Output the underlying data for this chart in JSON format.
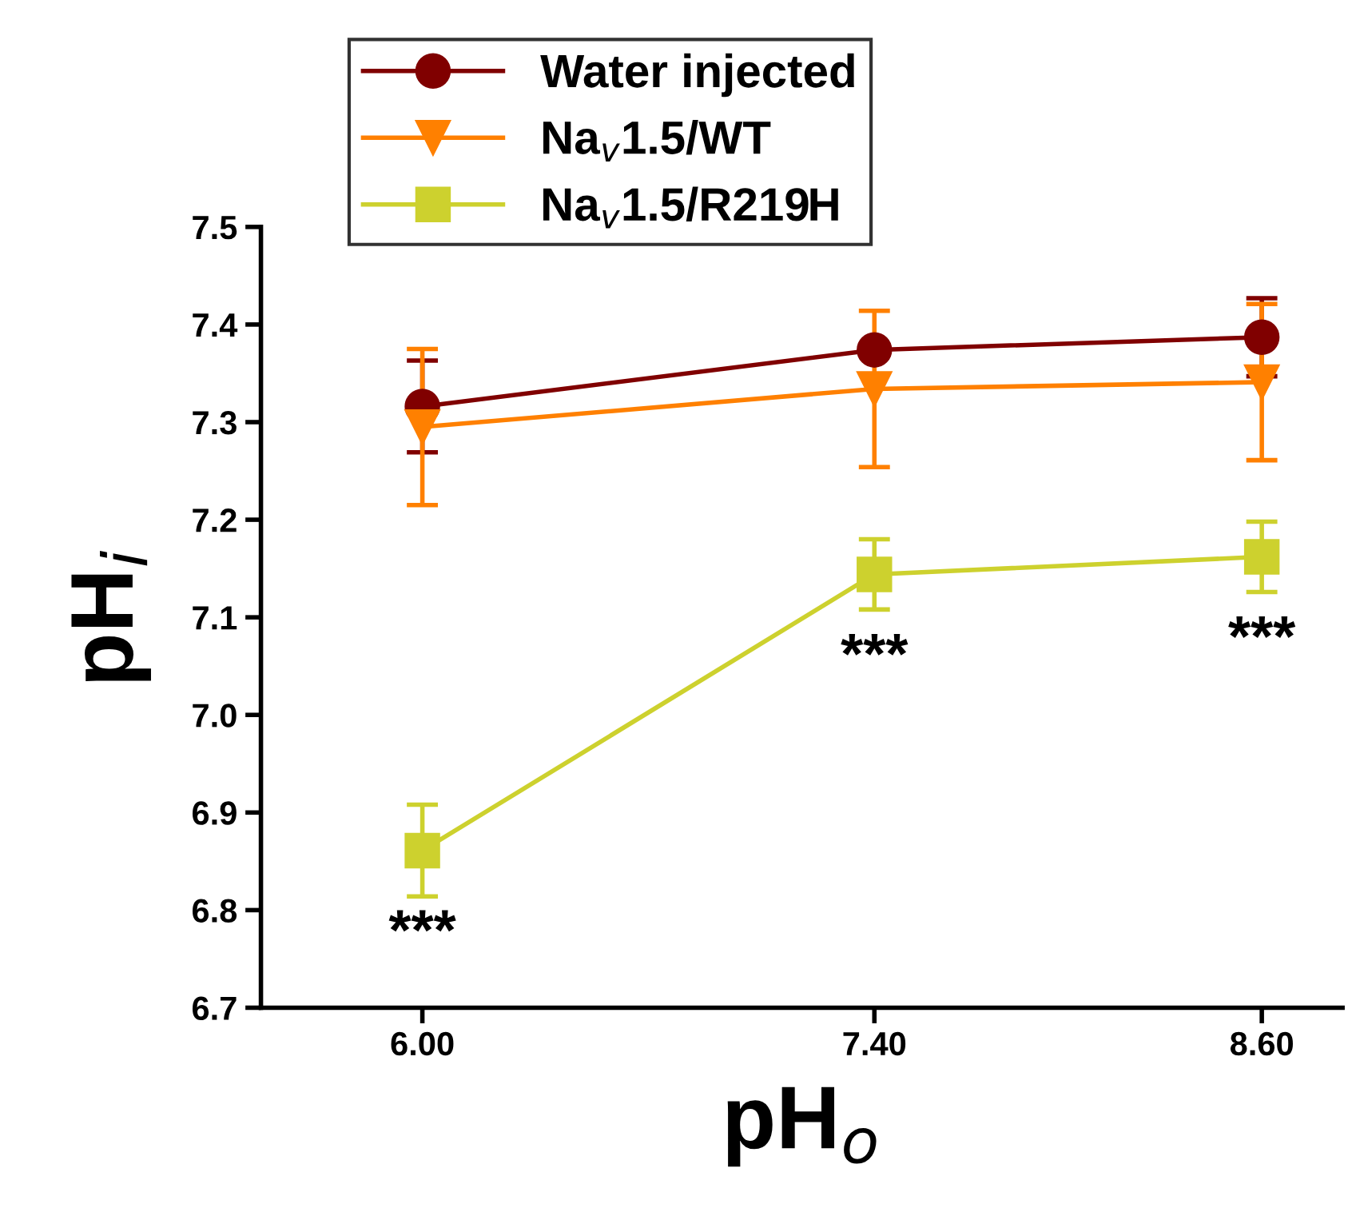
{
  "chart_data": {
    "type": "line",
    "xlabel": "pH$_{o}$",
    "ylabel": "pH$_{i}$",
    "x": [
      6.0,
      7.4,
      8.6
    ],
    "xlim": [
      5.5,
      8.85
    ],
    "xticks": [
      {
        "value": 6.0,
        "label": "6.00"
      },
      {
        "value": 7.4,
        "label": "7.40"
      },
      {
        "value": 8.6,
        "label": "8.60"
      }
    ],
    "ylim": [
      6.7,
      7.5
    ],
    "yticks": [
      {
        "value": 6.7,
        "label": "6.7"
      },
      {
        "value": 6.8,
        "label": "6.8"
      },
      {
        "value": 6.9,
        "label": "6.9"
      },
      {
        "value": 7.0,
        "label": "7.0"
      },
      {
        "value": 7.1,
        "label": "7.1"
      },
      {
        "value": 7.2,
        "label": "7.2"
      },
      {
        "value": 7.3,
        "label": "7.3"
      },
      {
        "value": 7.4,
        "label": "7.4"
      },
      {
        "value": 7.5,
        "label": "7.5"
      }
    ],
    "series": [
      {
        "name": "Water injected",
        "color": "#800000",
        "marker": "circle",
        "values": [
          7.316,
          7.374,
          7.387
        ],
        "errors": [
          0.047,
          null,
          0.04
        ]
      },
      {
        "name": "Na$_{v}$1.5/WT",
        "color": "#ff8000",
        "marker": "triangle",
        "values": [
          7.295,
          7.334,
          7.341
        ],
        "errors": [
          0.08,
          0.08,
          0.08
        ]
      },
      {
        "name": "Na$_{v}$1.5/R219H",
        "color": "#cdd12e",
        "marker": "square",
        "values": [
          6.861,
          7.144,
          7.162
        ],
        "errors": [
          0.047,
          0.036,
          0.036
        ]
      }
    ],
    "annotations": [
      "***",
      "***",
      "***"
    ],
    "legend": "top left",
    "grid": false
  }
}
